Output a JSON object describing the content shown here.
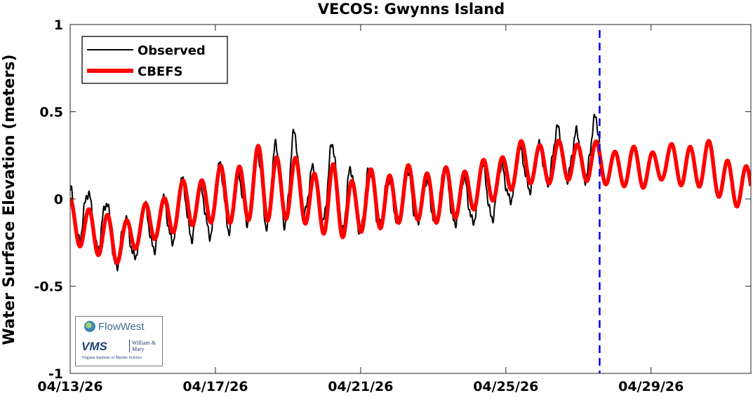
{
  "chart_data": {
    "type": "line",
    "title": "VECOS: Gwynns Island",
    "ylabel": "Water Surface Elevation (meters)",
    "xlabel": "",
    "x_unit": "days",
    "xlim": [
      "04/13/26",
      "05/01/26 18:00"
    ],
    "ylim": [
      -1,
      1
    ],
    "yticks": [
      1,
      0.5,
      0,
      -0.5,
      -1
    ],
    "ytick_labels": [
      "1",
      "0.5",
      "0",
      "-0.5",
      "-1"
    ],
    "xticks": [
      "04/13/26",
      "04/17/26",
      "04/21/26",
      "04/25/26",
      "04/29/26"
    ],
    "xtick_labels": [
      "04/13/26",
      "04/17/26",
      "04/21/26",
      "04/25/26",
      "04/29/26"
    ],
    "legend": {
      "placement": "top-left",
      "entries": [
        "Observed",
        "CBEFS"
      ]
    },
    "series": [
      {
        "name": "Observed",
        "color": "#000000",
        "x_start": "04/13/26",
        "x_end": "04/27/26 14:00",
        "highs": [
          0.08,
          0.09,
          -0.08,
          -0.07,
          0.02,
          0.11,
          0.1,
          0.22,
          0.18,
          0.38,
          0.41,
          0.22,
          0.33,
          0.2,
          0.16,
          0.17,
          0.15,
          0.18,
          0.16,
          0.2,
          0.25,
          0.32,
          0.4,
          0.43,
          0.47
        ],
        "lows": [
          -0.25,
          -0.28,
          -0.42,
          -0.35,
          -0.3,
          -0.25,
          -0.24,
          -0.22,
          -0.15,
          -0.2,
          -0.18,
          -0.1,
          -0.25,
          -0.22,
          -0.18,
          -0.15,
          -0.16,
          -0.17,
          -0.16,
          -0.15,
          -0.02,
          0.05,
          0.1,
          0.09,
          0.1
        ]
      },
      {
        "name": "CBEFS",
        "color": "#ff0000",
        "x_start": "04/13/26",
        "x_end": "05/01/26 18:00",
        "highs": [
          0.0,
          -0.02,
          -0.12,
          -0.06,
          0.02,
          0.1,
          0.15,
          0.2,
          0.26,
          0.34,
          0.25,
          0.2,
          0.2,
          0.15,
          0.18,
          0.19,
          0.2,
          0.18,
          0.2,
          0.23,
          0.3,
          0.36,
          0.33,
          0.35,
          0.33,
          0.3,
          0.3,
          0.3,
          0.34,
          0.34,
          0.26,
          0.17
        ],
        "lows": [
          -0.27,
          -0.32,
          -0.4,
          -0.3,
          -0.24,
          -0.2,
          -0.15,
          -0.17,
          -0.15,
          -0.16,
          -0.14,
          -0.18,
          -0.27,
          -0.22,
          -0.2,
          -0.16,
          -0.14,
          -0.17,
          -0.1,
          -0.05,
          0.03,
          0.07,
          0.07,
          0.1,
          0.07,
          0.06,
          0.04,
          0.1,
          0.05,
          0.05,
          -0.06,
          -0.07
        ]
      }
    ],
    "vline": {
      "x": "04/27/26 14:00",
      "color": "#0000ee",
      "style": "dashed"
    }
  },
  "logo": {
    "brand": "FlowWest",
    "org": "VMS",
    "school": "William & Mary",
    "institute": "Virginia Institute of Marine Science"
  }
}
